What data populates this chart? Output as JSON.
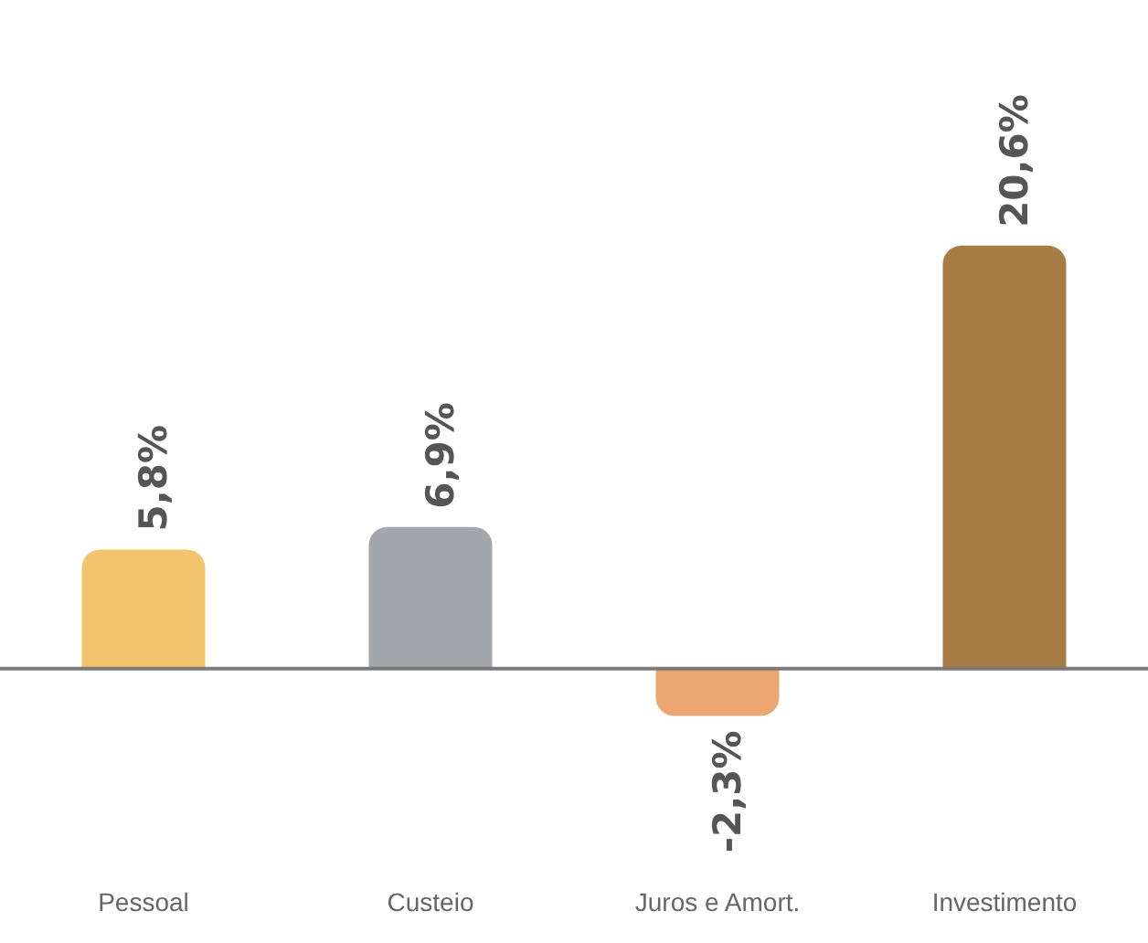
{
  "chart_data": {
    "type": "bar",
    "categories": [
      "Pessoal",
      "Custeio",
      "Juros e Amort.",
      "Investimento"
    ],
    "values": [
      5.8,
      6.9,
      -2.3,
      20.6
    ],
    "colors": [
      "#f2c46d",
      "#a3a6ab",
      "#eba672",
      "#a87d45"
    ],
    "value_labels": [
      "5,8%",
      "6,9%",
      "-2,3%",
      "20,6%"
    ],
    "grid": false,
    "legend": false
  }
}
